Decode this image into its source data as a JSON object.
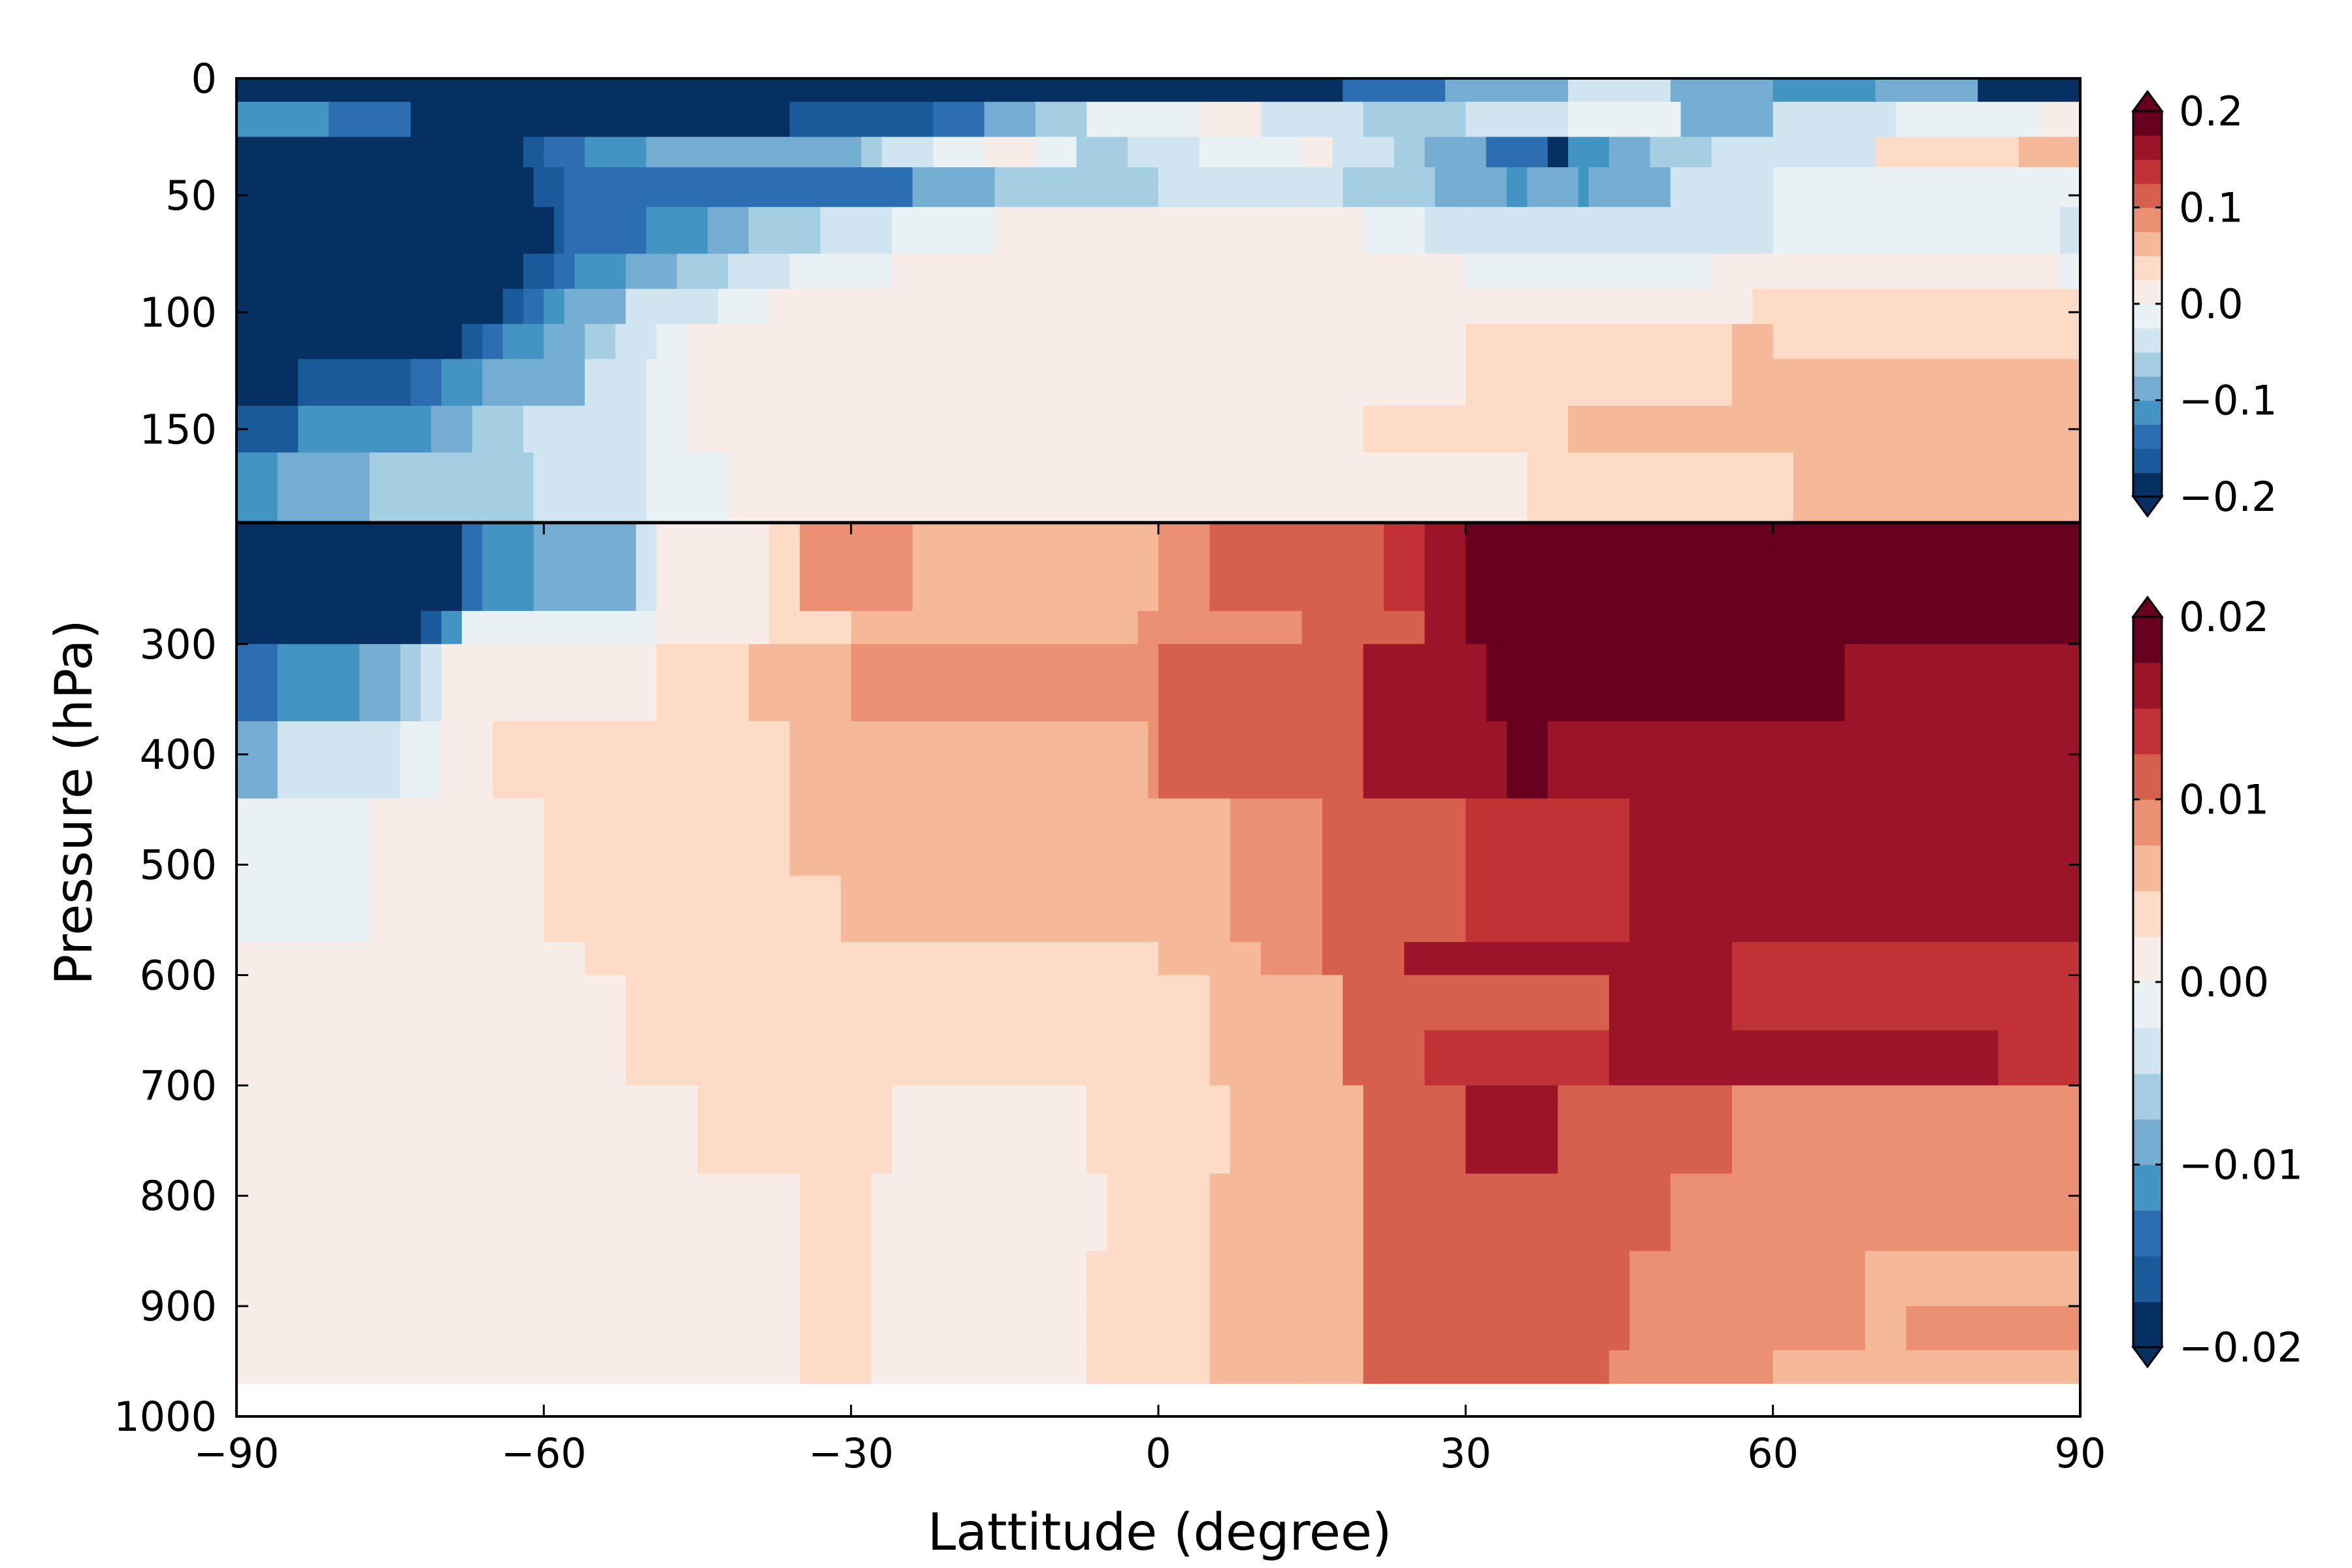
{
  "chart_data": {
    "type": "heatmap",
    "xlabel": "Lattitude (degree)",
    "ylabel": "Pressure (hPa)",
    "xlim": [
      -90,
      90
    ],
    "ylim": [
      1000,
      0
    ],
    "xticks": [
      "−90",
      "−60",
      "−30",
      "0",
      "30",
      "60",
      "90"
    ],
    "yticks": [
      "0",
      "50",
      "100",
      "150",
      "300",
      "400",
      "500",
      "600",
      "700",
      "800",
      "900",
      "1000"
    ],
    "panels": [
      {
        "name": "upper",
        "pressure_range": [
          0,
          190
        ],
        "colorbar": {
          "ticks": [
            "0.2",
            "0.1",
            "0.0",
            "−0.1",
            "−0.2"
          ],
          "range": [
            -0.2,
            0.2
          ],
          "extend": "both"
        },
        "rows": [
          {
            "p": [
              0,
              10
            ],
            "x": [
              -90,
              -30,
              -28,
              -12,
              0,
              8,
              18,
              28,
              40,
              50,
              60,
              70,
              80,
              84,
              90
            ],
            "v": [
              -0.2,
              -0.19,
              -0.2,
              -0.2,
              -0.2,
              -0.18,
              -0.14,
              -0.08,
              -0.03,
              -0.1,
              -0.12,
              -0.08,
              -0.18,
              -0.2
            ]
          },
          {
            "p": [
              10,
              25
            ],
            "x": [
              -90,
              -81,
              -73,
              -56,
              -41,
              -36,
              -22,
              -17,
              -12,
              -7,
              4,
              10,
              20,
              30,
              40,
              51,
              60,
              72,
              86,
              90
            ],
            "v": [
              -0.11,
              -0.15,
              -0.2,
              -0.2,
              -0.2,
              -0.17,
              -0.13,
              -0.1,
              -0.06,
              -0.02,
              0.0,
              -0.03,
              -0.06,
              -0.03,
              -0.01,
              -0.08,
              -0.05,
              -0.02,
              0.0
            ]
          },
          {
            "p": [
              25,
              38
            ],
            "x": [
              -90,
              -68,
              -62,
              -60,
              -56,
              -50,
              -29,
              -27,
              -22,
              -17,
              -12,
              -8,
              -3,
              4,
              14,
              17,
              23,
              26,
              32,
              38,
              40,
              44,
              48,
              54,
              62,
              70,
              84,
              90
            ],
            "v": [
              -0.2,
              -0.18,
              -0.16,
              -0.13,
              -0.11,
              -0.1,
              -0.07,
              -0.05,
              -0.02,
              0.0,
              -0.02,
              -0.06,
              -0.03,
              -0.02,
              0.0,
              -0.03,
              -0.06,
              -0.1,
              -0.15,
              -0.18,
              -0.12,
              -0.09,
              -0.06,
              -0.04,
              -0.03,
              0.03,
              0.05
            ]
          },
          {
            "p": [
              38,
              55
            ],
            "x": [
              -90,
              -61,
              -58,
              -30,
              -24,
              -16,
              -10,
              0,
              12,
              18,
              27,
              31,
              34,
              36,
              41,
              42,
              50,
              54,
              60,
              90
            ],
            "v": [
              -0.2,
              -0.17,
              -0.15,
              -0.13,
              -0.1,
              -0.07,
              -0.06,
              -0.05,
              -0.03,
              -0.06,
              -0.1,
              -0.1,
              -0.11,
              -0.1,
              -0.11,
              -0.09,
              -0.05,
              -0.03,
              -0.01
            ]
          },
          {
            "p": [
              55,
              75
            ],
            "x": [
              -90,
              -59,
              -58,
              -50,
              -44,
              -40,
              -33,
              -26,
              -16,
              0,
              14,
              20,
              26,
              30,
              60,
              88,
              90
            ],
            "v": [
              -0.2,
              -0.17,
              -0.14,
              -0.12,
              -0.1,
              -0.07,
              -0.05,
              -0.02,
              0.01,
              0.02,
              0.0,
              -0.02,
              -0.03,
              -0.03,
              -0.01,
              -0.03
            ]
          },
          {
            "p": [
              75,
              90
            ],
            "x": [
              -90,
              -62,
              -59,
              -57,
              -52,
              -47,
              -42,
              -36,
              -26,
              0,
              14,
              20,
              30,
              40,
              54,
              58,
              88,
              90
            ],
            "v": [
              -0.2,
              -0.17,
              -0.13,
              -0.11,
              -0.08,
              -0.06,
              -0.04,
              -0.01,
              0.01,
              0.02,
              0.01,
              0.0,
              -0.02,
              -0.02,
              0.0,
              0.01,
              -0.02
            ]
          },
          {
            "p": [
              90,
              105
            ],
            "x": [
              -90,
              -64,
              -62,
              -60,
              -58,
              -56,
              -52,
              -46,
              -43,
              -38,
              -16,
              0,
              20,
              30,
              40,
              58,
              66,
              70,
              88,
              90
            ],
            "v": [
              -0.2,
              -0.17,
              -0.15,
              -0.12,
              -0.1,
              -0.08,
              -0.05,
              -0.03,
              -0.01,
              0.01,
              0.01,
              0.01,
              0.01,
              0.02,
              0.02,
              0.04,
              0.04,
              0.03,
              0.03
            ]
          },
          {
            "p": [
              105,
              120
            ],
            "x": [
              -90,
              -68,
              -66,
              -64,
              -60,
              -56,
              -53,
              -49,
              -46,
              -44,
              -10,
              0,
              20,
              30,
              40,
              50,
              56,
              60,
              80,
              90
            ],
            "v": [
              -0.2,
              -0.17,
              -0.15,
              -0.12,
              -0.1,
              -0.07,
              -0.04,
              -0.02,
              0.01,
              0.01,
              0.01,
              0.01,
              0.01,
              0.03,
              0.03,
              0.03,
              0.06,
              0.04,
              0.04
            ]
          },
          {
            "p": [
              120,
              140
            ],
            "x": [
              -90,
              -84,
              -73,
              -70,
              -66,
              -62,
              -56,
              -50,
              -46,
              -44,
              -10,
              0,
              20,
              30,
              40,
              56,
              62,
              90
            ],
            "v": [
              -0.2,
              -0.17,
              -0.14,
              -0.12,
              -0.1,
              -0.08,
              -0.05,
              -0.02,
              0.01,
              0.01,
              0.01,
              0.01,
              0.01,
              0.03,
              0.03,
              0.07,
              0.07
            ]
          },
          {
            "p": [
              140,
              160
            ],
            "x": [
              -90,
              -84,
              -71,
              -67,
              -62,
              -50,
              -46,
              -43,
              -42,
              -10,
              0,
              20,
              34,
              40,
              56,
              90
            ],
            "v": [
              -0.16,
              -0.12,
              -0.09,
              -0.07,
              -0.05,
              -0.02,
              0.0,
              0.01,
              0.01,
              0.01,
              0.01,
              0.03,
              0.03,
              0.07,
              0.07
            ]
          },
          {
            "p": [
              160,
              190
            ],
            "x": [
              -90,
              -86,
              -77,
              -61,
              -50,
              -42,
              0,
              36,
              37,
              62,
              90
            ],
            "v": [
              -0.12,
              -0.09,
              -0.06,
              -0.03,
              -0.01,
              0.01,
              0.01,
              0.03,
              0.04,
              0.07
            ]
          }
        ]
      },
      {
        "name": "lower",
        "pressure_range": [
          190,
          970
        ],
        "colorbar": {
          "ticks": [
            "0.02",
            "0.01",
            "0.00",
            "−0.01",
            "−0.02"
          ],
          "range": [
            -0.02,
            0.02
          ],
          "extend": "both"
        },
        "rows": [
          {
            "p": [
              190,
              270
            ],
            "x": [
              -90,
              -68,
              -66,
              -61,
              -57,
              -53,
              -51,
              -49,
              -44,
              -38,
              -35,
              -24,
              -4,
              0,
              5,
              16,
              22,
              26,
              30,
              90
            ],
            "v": [
              -0.02,
              -0.015,
              -0.012,
              -0.01,
              -0.01,
              -0.008,
              -0.004,
              0.0,
              0.002,
              0.004,
              0.008,
              0.006,
              0.006,
              0.008,
              0.01,
              0.012,
              0.014,
              0.016,
              0.02
            ]
          },
          {
            "p": [
              270,
              300
            ],
            "x": [
              -90,
              -72,
              -70,
              -68,
              -49,
              -44,
              -38,
              -30,
              -2,
              0,
              14,
              20,
              26,
              30,
              90
            ],
            "v": [
              -0.02,
              -0.016,
              -0.012,
              -0.002,
              0.0,
              0.002,
              0.004,
              0.006,
              0.008,
              0.008,
              0.01,
              0.012,
              0.015,
              0.02
            ]
          },
          {
            "p": [
              300,
              370
            ],
            "x": [
              -90,
              -86,
              -78,
              -74,
              -72,
              -70,
              -49,
              -40,
              -30,
              -3,
              0,
              12,
              20,
              26,
              32,
              67,
              90
            ],
            "v": [
              -0.014,
              -0.011,
              -0.008,
              -0.006,
              -0.004,
              0.001,
              0.003,
              0.005,
              0.008,
              0.008,
              0.01,
              0.012,
              0.015,
              0.017,
              0.02,
              0.017
            ]
          },
          {
            "p": [
              370,
              440
            ],
            "x": [
              -90,
              -86,
              -74,
              -70,
              -65,
              -36,
              -1,
              0,
              12,
              20,
              26,
              34,
              38,
              64,
              90
            ],
            "v": [
              -0.008,
              -0.004,
              -0.002,
              0.001,
              0.003,
              0.005,
              0.008,
              0.01,
              0.012,
              0.015,
              0.017,
              0.019,
              0.017,
              0.015
            ]
          },
          {
            "p": [
              440,
              510
            ],
            "x": [
              -90,
              -77,
              -60,
              -36,
              0,
              7,
              16,
              22,
              30,
              46,
              88,
              90
            ],
            "v": [
              -0.002,
              0.001,
              0.003,
              0.005,
              0.007,
              0.008,
              0.01,
              0.012,
              0.014,
              0.017,
              0.015,
              0.014
            ]
          },
          {
            "p": [
              510,
              570
            ],
            "x": [
              -90,
              -77,
              -60,
              -31,
              0,
              7,
              16,
              22,
              30,
              46,
              88,
              90
            ],
            "v": [
              -0.002,
              0.001,
              0.003,
              0.005,
              0.007,
              0.008,
              0.01,
              0.012,
              0.014,
              0.017,
              0.015,
              0.014
            ]
          },
          {
            "p": [
              570,
              600
            ],
            "x": [
              -90,
              -56,
              -3,
              0,
              10,
              16,
              24,
              56,
              90
            ],
            "v": [
              0.001,
              0.003,
              0.003,
              0.005,
              0.008,
              0.012,
              0.015,
              0.013
            ]
          },
          {
            "p": [
              600,
              650
            ],
            "x": [
              -90,
              -52,
              5,
              12,
              18,
              25,
              44,
              56,
              90
            ],
            "v": [
              0.001,
              0.003,
              0.005,
              0.007,
              0.01,
              0.012,
              0.015,
              0.013
            ]
          },
          {
            "p": [
              650,
              700
            ],
            "x": [
              -90,
              -52,
              5,
              12,
              18,
              26,
              44,
              82,
              90
            ],
            "v": [
              0.001,
              0.003,
              0.005,
              0.007,
              0.01,
              0.013,
              0.015,
              0.013,
              0.009
            ]
          },
          {
            "p": [
              700,
              780
            ],
            "x": [
              -90,
              -45,
              -26,
              -7,
              7,
              14,
              20,
              30,
              39,
              56,
              90
            ],
            "v": [
              0.001,
              0.003,
              0.001,
              0.003,
              0.005,
              0.007,
              0.01,
              0.015,
              0.011,
              0.009
            ]
          },
          {
            "p": [
              780,
              850
            ],
            "x": [
              -90,
              -35,
              -28,
              -5,
              5,
              16,
              20,
              50,
              90
            ],
            "v": [
              0.001,
              0.003,
              0.001,
              0.003,
              0.005,
              0.007,
              0.011,
              0.009
            ]
          },
          {
            "p": [
              850,
              900
            ],
            "x": [
              -90,
              -35,
              -28,
              -7,
              5,
              14,
              20,
              46,
              69,
              90
            ],
            "v": [
              0.001,
              0.003,
              0.001,
              0.003,
              0.005,
              0.007,
              0.011,
              0.009,
              0.006
            ]
          },
          {
            "p": [
              900,
              940
            ],
            "x": [
              -90,
              -35,
              -28,
              -7,
              5,
              14,
              20,
              46,
              69,
              73,
              90
            ],
            "v": [
              0.001,
              0.003,
              0.001,
              0.003,
              0.005,
              0.007,
              0.011,
              0.009,
              0.006,
              0.009
            ]
          },
          {
            "p": [
              940,
              970
            ],
            "x": [
              -90,
              -35,
              -28,
              -7,
              5,
              14,
              20,
              44,
              60,
              90
            ],
            "v": [
              0.001,
              0.003,
              0.001,
              0.003,
              0.005,
              0.007,
              0.011,
              0.009,
              0.006
            ]
          }
        ]
      }
    ]
  },
  "colormap": [
    "#053061",
    "#1a5a9b",
    "#2b6fb2",
    "#4393c3",
    "#74add1",
    "#a6cee3",
    "#d1e5f0",
    "#eaf1f4",
    "#f7ece7",
    "#fddbc7",
    "#f5b898",
    "#eb9072",
    "#d6604d",
    "#c03236",
    "#9b1427",
    "#67001f"
  ]
}
